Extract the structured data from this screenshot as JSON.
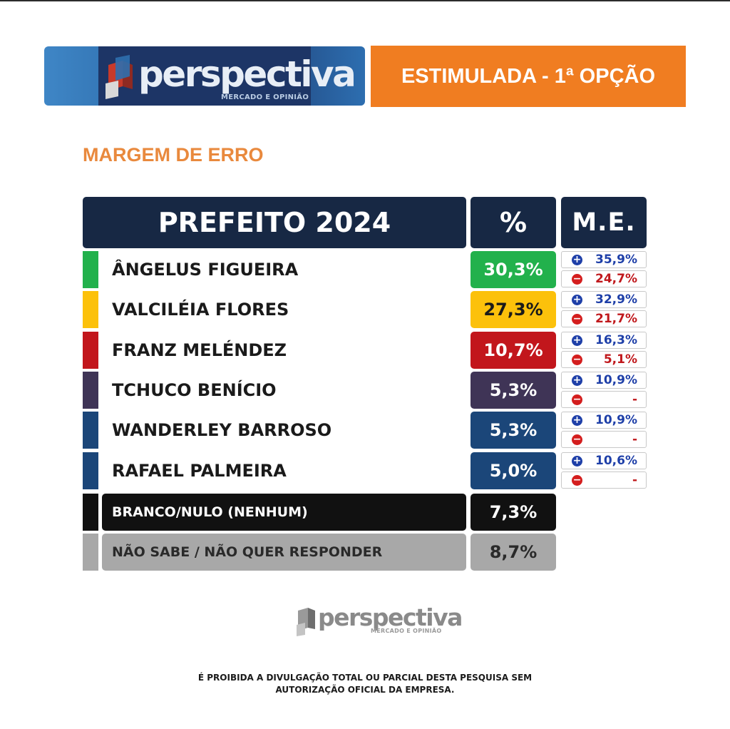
{
  "header": {
    "brand_name": "perspectiva",
    "brand_tagline": "MERCADO E OPINIÃO",
    "option_label": "ESTIMULADA - 1ª OPÇÃO"
  },
  "section_title": "MARGEM DE ERRO",
  "colors": {
    "header_bg": "#172844",
    "option_banner": "#f07d21",
    "section_title": "#e9893d",
    "me_plus": "#1e3fa8",
    "me_minus": "#c0181c"
  },
  "chart_data": {
    "type": "table",
    "columns": [
      "PREFEITO 2024",
      "%",
      "M.E."
    ],
    "rows": [
      {
        "name": "ÂNGELUS FIGUEIRA",
        "pct": "30,3%",
        "value": 30.3,
        "me_plus": "35,9%",
        "me_minus": "24,7%",
        "color": "#22b14c",
        "text_color": "#ffffff"
      },
      {
        "name": "VALCILÉIA FLORES",
        "pct": "27,3%",
        "value": 27.3,
        "me_plus": "32,9%",
        "me_minus": "21,7%",
        "color": "#fcc10b",
        "text_color": "#1a1a1a"
      },
      {
        "name": "FRANZ MELÉNDEZ",
        "pct": "10,7%",
        "value": 10.7,
        "me_plus": "16,3%",
        "me_minus": "5,1%",
        "color": "#c2161c",
        "text_color": "#ffffff"
      },
      {
        "name": "TCHUCO BENÍCIO",
        "pct": "5,3%",
        "value": 5.3,
        "me_plus": "10,9%",
        "me_minus": "-",
        "color": "#3f3456",
        "text_color": "#ffffff"
      },
      {
        "name": "WANDERLEY BARROSO",
        "pct": "5,3%",
        "value": 5.3,
        "me_plus": "10,9%",
        "me_minus": "-",
        "color": "#1b4679",
        "text_color": "#ffffff"
      },
      {
        "name": "RAFAEL PALMEIRA",
        "pct": "5,0%",
        "value": 5.0,
        "me_plus": "10,6%",
        "me_minus": "-",
        "color": "#1b4679",
        "text_color": "#ffffff"
      }
    ],
    "others": [
      {
        "name": "BRANCO/NULO (NENHUM)",
        "pct": "7,3%",
        "value": 7.3,
        "color": "#111111",
        "text_color": "#ffffff"
      },
      {
        "name": "NÃO SABE / NÃO QUER RESPONDER",
        "pct": "8,7%",
        "value": 8.7,
        "color": "#a8a8a8",
        "text_color": "#2a2a2a"
      }
    ]
  },
  "footer": {
    "brand_name": "perspectiva",
    "brand_tagline": "MERCADO E OPINIÃO",
    "disclaimer_line1": "É PROIBIDA A DIVULGAÇÃO TOTAL OU PARCIAL DESTA PESQUISA SEM",
    "disclaimer_line2": "AUTORIZAÇÃO OFICIAL DA EMPRESA."
  }
}
